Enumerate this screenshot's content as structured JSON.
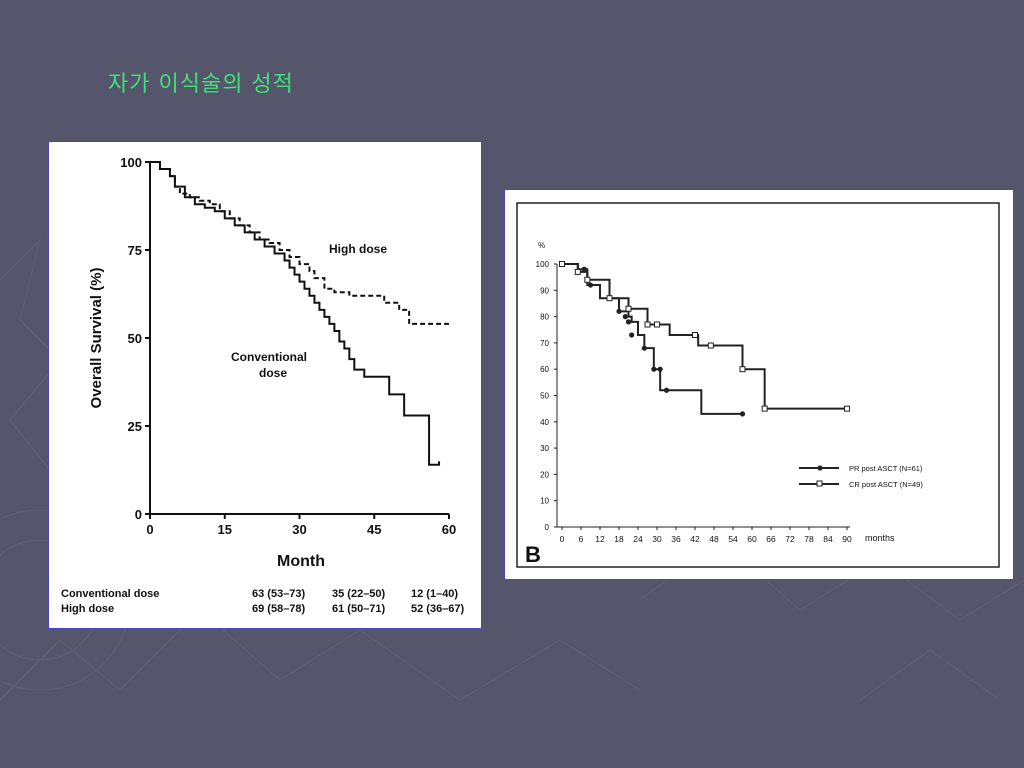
{
  "slide": {
    "title": "자가 이식술의 성적",
    "background_color": "#55566b",
    "title_color": "#3fe07a"
  },
  "chart_data": [
    {
      "type": "line",
      "step": true,
      "ylabel": "Overall Survival (%)",
      "xlabel": "Month",
      "xlim": [
        0,
        60
      ],
      "ylim": [
        0,
        100
      ],
      "x_ticks": [
        "0",
        "15",
        "30",
        "45",
        "60"
      ],
      "y_ticks": [
        "0",
        "25",
        "50",
        "75",
        "100"
      ],
      "series": [
        {
          "name": "High dose",
          "style": "dashed",
          "x": [
            0,
            2,
            4,
            5,
            6,
            8,
            10,
            12,
            14,
            16,
            18,
            20,
            22,
            24,
            26,
            28,
            30,
            32,
            33,
            35,
            37,
            40,
            44,
            47,
            50,
            52,
            56,
            60
          ],
          "y": [
            100,
            98,
            96,
            93,
            91,
            90,
            89,
            88,
            86,
            84,
            82,
            80,
            78,
            77,
            75,
            73,
            71,
            69,
            67,
            64,
            63,
            62,
            62,
            60,
            58,
            54,
            54,
            54
          ]
        },
        {
          "name": "Conventional dose",
          "style": "solid",
          "x": [
            0,
            2,
            4,
            5,
            7,
            9,
            11,
            13,
            15,
            17,
            19,
            21,
            23,
            25,
            27,
            28,
            29,
            30,
            31,
            32,
            33,
            34,
            35,
            36,
            37,
            38,
            39,
            40,
            41,
            43,
            45,
            48,
            51,
            55,
            56,
            58
          ],
          "y": [
            100,
            98,
            96,
            93,
            90,
            88,
            87,
            86,
            84,
            82,
            80,
            78,
            76,
            74,
            72,
            70,
            68,
            66,
            64,
            62,
            60,
            58,
            56,
            54,
            52,
            49,
            47,
            44,
            41,
            39,
            39,
            34,
            28,
            28,
            14,
            15
          ]
        }
      ],
      "annotations": [
        "High dose",
        "Conventional",
        "dose"
      ],
      "table": {
        "rows": [
          {
            "label": "Conventional dose",
            "values": [
              "63 (53–73)",
              "35 (22–50)",
              "12 (1–40)"
            ]
          },
          {
            "label": "High dose",
            "values": [
              "69 (58–78)",
              "61 (50–71)",
              "52 (36–67)"
            ]
          }
        ]
      }
    },
    {
      "type": "line",
      "step": true,
      "panel_label": "B",
      "ylabel": "%",
      "xlabel": "months",
      "xlim": [
        0,
        90
      ],
      "ylim": [
        0,
        100
      ],
      "x_ticks": [
        "0",
        "6",
        "12",
        "18",
        "24",
        "30",
        "36",
        "42",
        "48",
        "54",
        "60",
        "66",
        "72",
        "78",
        "84",
        "90"
      ],
      "y_ticks": [
        "0",
        "10",
        "20",
        "30",
        "40",
        "50",
        "60",
        "70",
        "80",
        "90",
        "100"
      ],
      "series": [
        {
          "name": "PR post ASCT (N=61)",
          "marker": "filled-circle",
          "x": [
            0,
            5,
            8,
            12,
            18,
            21,
            22,
            24,
            26,
            29,
            31,
            33,
            44,
            57
          ],
          "y": [
            100,
            98,
            92,
            87,
            82,
            80,
            78,
            73,
            68,
            60,
            52,
            52,
            43,
            43
          ],
          "markers_x": [
            0,
            7,
            9,
            18,
            20,
            21,
            22,
            26,
            29,
            31,
            33,
            57
          ],
          "markers_y": [
            100,
            98,
            92,
            82,
            80,
            78,
            73,
            68,
            60,
            60,
            52,
            43
          ]
        },
        {
          "name": "CR post ASCT (N=49)",
          "marker": "open-square",
          "x": [
            0,
            5,
            8,
            15,
            21,
            27,
            30,
            34,
            43,
            47,
            57,
            64,
            90
          ],
          "y": [
            100,
            97,
            94,
            87,
            83,
            77,
            77,
            73,
            69,
            69,
            60,
            45,
            45
          ],
          "markers_x": [
            0,
            5,
            8,
            15,
            21,
            27,
            30,
            42,
            47,
            57,
            64,
            90
          ],
          "markers_y": [
            100,
            97,
            94,
            87,
            83,
            77,
            77,
            73,
            69,
            60,
            45,
            45
          ]
        }
      ]
    }
  ]
}
